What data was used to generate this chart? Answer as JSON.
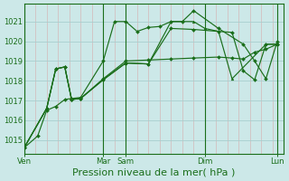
{
  "bg_color": "#cce8e8",
  "plot_bg_color": "#cce8e8",
  "grid_color": "#a8cece",
  "minor_grid_color": "#d4b8b8",
  "line_color": "#1a6e1a",
  "xlabel": "Pression niveau de la mer( hPa )",
  "xlabel_fontsize": 8,
  "yticks": [
    1015,
    1016,
    1017,
    1018,
    1019,
    1020,
    1021
  ],
  "ylim": [
    1014.3,
    1021.9
  ],
  "xlim": [
    0,
    11.5
  ],
  "series": [
    {
      "x": [
        0.0,
        0.6,
        1.0,
        1.4,
        1.8,
        2.1,
        2.5,
        3.5,
        4.0,
        4.5,
        5.0,
        5.5,
        6.0,
        6.5,
        7.0,
        7.5,
        8.6,
        9.7,
        10.2,
        10.7,
        11.2
      ],
      "y": [
        1014.6,
        1015.2,
        1016.5,
        1016.7,
        1017.05,
        1017.1,
        1017.15,
        1019.0,
        1021.0,
        1021.0,
        1020.5,
        1020.7,
        1020.75,
        1021.0,
        1021.0,
        1021.55,
        1020.65,
        1019.85,
        1019.0,
        1018.1,
        1020.0
      ]
    },
    {
      "x": [
        0.0,
        1.0,
        1.4,
        1.8,
        2.1,
        2.5,
        3.5,
        4.5,
        5.5,
        6.5,
        7.5,
        8.6,
        9.2,
        9.7,
        10.2,
        10.7,
        11.2
      ],
      "y": [
        1014.6,
        1016.6,
        1018.6,
        1018.7,
        1017.05,
        1017.1,
        1018.1,
        1019.0,
        1019.05,
        1019.1,
        1019.15,
        1019.2,
        1019.15,
        1019.1,
        1019.45,
        1019.6,
        1019.85
      ]
    },
    {
      "x": [
        0.0,
        1.0,
        1.4,
        1.8,
        2.1,
        2.5,
        3.5,
        4.5,
        5.5,
        6.5,
        7.5,
        8.0,
        8.6,
        9.2,
        10.7,
        11.2
      ],
      "y": [
        1014.6,
        1016.6,
        1018.6,
        1018.7,
        1017.05,
        1017.1,
        1018.05,
        1018.9,
        1018.85,
        1021.0,
        1021.0,
        1020.65,
        1020.5,
        1018.1,
        1019.85,
        1019.85
      ]
    },
    {
      "x": [
        0.0,
        1.0,
        1.4,
        1.8,
        2.1,
        2.5,
        3.5,
        4.5,
        5.5,
        6.5,
        7.5,
        8.6,
        9.2,
        9.7,
        10.2,
        10.7,
        11.2
      ],
      "y": [
        1014.6,
        1016.6,
        1018.6,
        1018.7,
        1017.05,
        1017.1,
        1018.05,
        1018.9,
        1018.85,
        1020.65,
        1020.6,
        1020.5,
        1020.45,
        1018.5,
        1018.05,
        1019.85,
        1019.85
      ]
    }
  ],
  "major_xtick_positions": [
    0.0,
    3.5,
    4.5,
    8.0,
    11.2
  ],
  "major_xtick_labels": [
    "Ven",
    "Mar",
    "Sam",
    "Dim",
    "Lun"
  ],
  "minor_xtick_step": 0.5
}
